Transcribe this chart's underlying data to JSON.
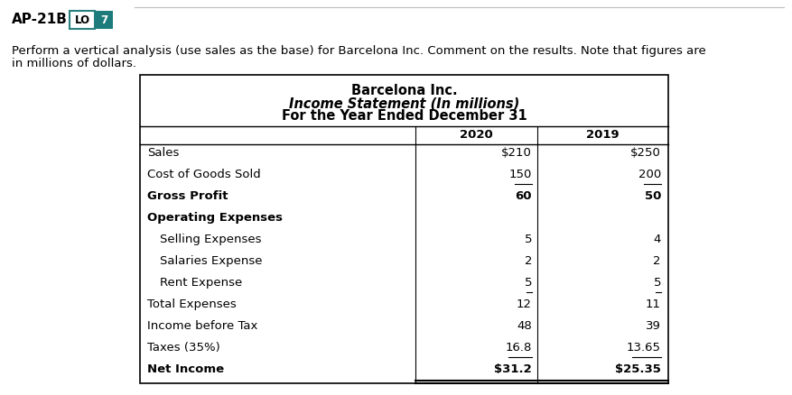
{
  "title_line1": "Barcelona Inc.",
  "title_line2": "Income Statement (In millions)",
  "title_line3": "For the Year Ended December 31",
  "col_headers": [
    "2020",
    "2019"
  ],
  "rows": [
    {
      "label": "Sales",
      "v2020": "$210",
      "v2019": "$250",
      "bold_label": false,
      "bold_val": false,
      "underline_val": false,
      "indent": false
    },
    {
      "label": "Cost of Goods Sold",
      "v2020": "150",
      "v2019": "200",
      "bold_label": false,
      "bold_val": false,
      "underline_val": true,
      "indent": false
    },
    {
      "label": "Gross Profit",
      "v2020": "60",
      "v2019": "50",
      "bold_label": true,
      "bold_val": true,
      "underline_val": false,
      "indent": false
    },
    {
      "label": "Operating Expenses",
      "v2020": "",
      "v2019": "",
      "bold_label": true,
      "bold_val": false,
      "underline_val": false,
      "indent": false
    },
    {
      "label": "Selling Expenses",
      "v2020": "5",
      "v2019": "4",
      "bold_label": false,
      "bold_val": false,
      "underline_val": false,
      "indent": true
    },
    {
      "label": "Salaries Expense",
      "v2020": "2",
      "v2019": "2",
      "bold_label": false,
      "bold_val": false,
      "underline_val": false,
      "indent": true
    },
    {
      "label": "Rent Expense",
      "v2020": "5",
      "v2019": "5",
      "bold_label": false,
      "bold_val": false,
      "underline_val": true,
      "indent": true
    },
    {
      "label": "Total Expenses",
      "v2020": "12",
      "v2019": "11",
      "bold_label": false,
      "bold_val": false,
      "underline_val": false,
      "indent": false
    },
    {
      "label": "Income before Tax",
      "v2020": "48",
      "v2019": "39",
      "bold_label": false,
      "bold_val": false,
      "underline_val": false,
      "indent": false
    },
    {
      "label": "Taxes (35%)",
      "v2020": "16.8",
      "v2019": "13.65",
      "bold_label": false,
      "bold_val": false,
      "underline_val": true,
      "indent": false
    },
    {
      "label": "Net Income",
      "v2020": "$31.2",
      "v2019": "$25.35",
      "bold_label": true,
      "bold_val": true,
      "underline_val": false,
      "indent": false
    }
  ],
  "bg_color": "#ffffff",
  "font_size": 9.5,
  "font_size_header": 10.5
}
